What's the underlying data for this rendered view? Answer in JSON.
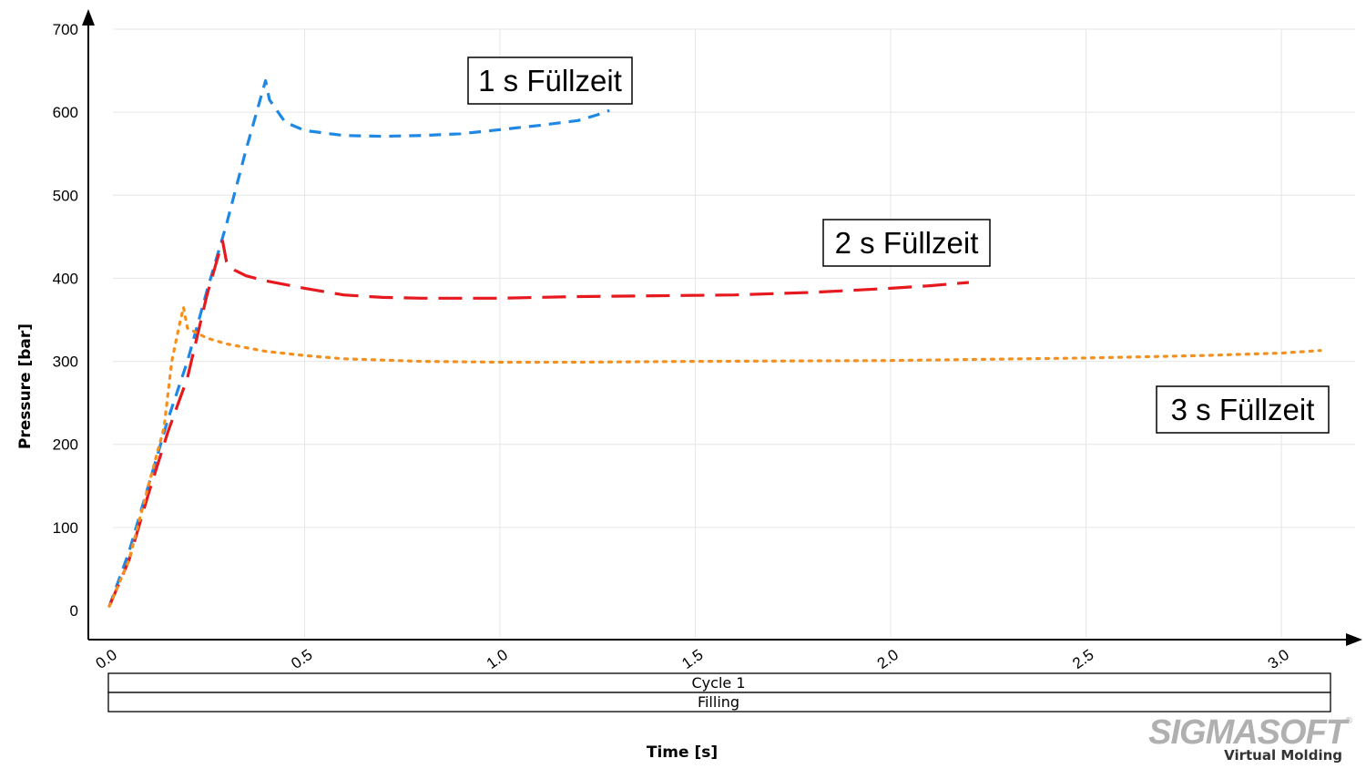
{
  "chart_data": {
    "type": "line",
    "xlabel": "Time [s]",
    "ylabel": "Pressure [bar]",
    "xlim": [
      0,
      3.1
    ],
    "ylim": [
      0,
      700
    ],
    "xticks": [
      0.0,
      0.5,
      1.0,
      1.5,
      2.0,
      2.5,
      3.0
    ],
    "xtick_labels": [
      "0.0",
      "0.5",
      "1.0",
      "1.5",
      "2.0",
      "2.5",
      "3.0"
    ],
    "yticks": [
      0,
      100,
      200,
      300,
      400,
      500,
      600,
      700
    ],
    "ytick_labels": [
      "0",
      "100",
      "200",
      "300",
      "400",
      "500",
      "600",
      "700"
    ],
    "grid": true,
    "series": [
      {
        "color": "#1e88e5",
        "dash": "short-dash",
        "x": [
          0.0,
          0.05,
          0.1,
          0.15,
          0.2,
          0.25,
          0.3,
          0.35,
          0.4,
          0.41,
          0.45,
          0.5,
          0.6,
          0.7,
          0.8,
          0.9,
          1.0,
          1.1,
          1.2,
          1.25,
          1.28
        ],
        "y": [
          5,
          70,
          150,
          230,
          300,
          385,
          465,
          555,
          638,
          615,
          588,
          578,
          572,
          571,
          572,
          574,
          579,
          584,
          590,
          597,
          602
        ]
      },
      {
        "color": "#e5191e",
        "dash": "long-dash",
        "x": [
          0.0,
          0.05,
          0.1,
          0.15,
          0.2,
          0.25,
          0.29,
          0.3,
          0.32,
          0.35,
          0.4,
          0.5,
          0.6,
          0.7,
          0.8,
          1.0,
          1.2,
          1.4,
          1.6,
          1.8,
          2.0,
          2.1,
          2.2
        ],
        "y": [
          5,
          60,
          140,
          215,
          280,
          380,
          445,
          420,
          410,
          403,
          397,
          388,
          380,
          377,
          376,
          376,
          378,
          379,
          380,
          383,
          388,
          391,
          395
        ]
      },
      {
        "color": "#f5901e",
        "dash": "dotted",
        "x": [
          0.0,
          0.05,
          0.1,
          0.14,
          0.16,
          0.18,
          0.19,
          0.2,
          0.25,
          0.3,
          0.4,
          0.5,
          0.6,
          0.8,
          1.0,
          1.2,
          1.5,
          2.0,
          2.5,
          2.8,
          3.0,
          3.1
        ],
        "y": [
          5,
          60,
          150,
          220,
          300,
          345,
          365,
          340,
          328,
          321,
          312,
          307,
          303,
          300,
          299,
          299,
          300,
          301,
          304,
          307,
          310,
          313
        ]
      }
    ],
    "annotations": [
      {
        "text": "1 s Füllzeit"
      },
      {
        "text": "2 s Füllzeit"
      },
      {
        "text": "3 s Füllzeit"
      }
    ],
    "timeline_bars": [
      "Cycle 1",
      "Filling"
    ]
  },
  "logo": {
    "brand": "SIGMASOFT",
    "registered": "®",
    "tagline": "Virtual Molding"
  }
}
